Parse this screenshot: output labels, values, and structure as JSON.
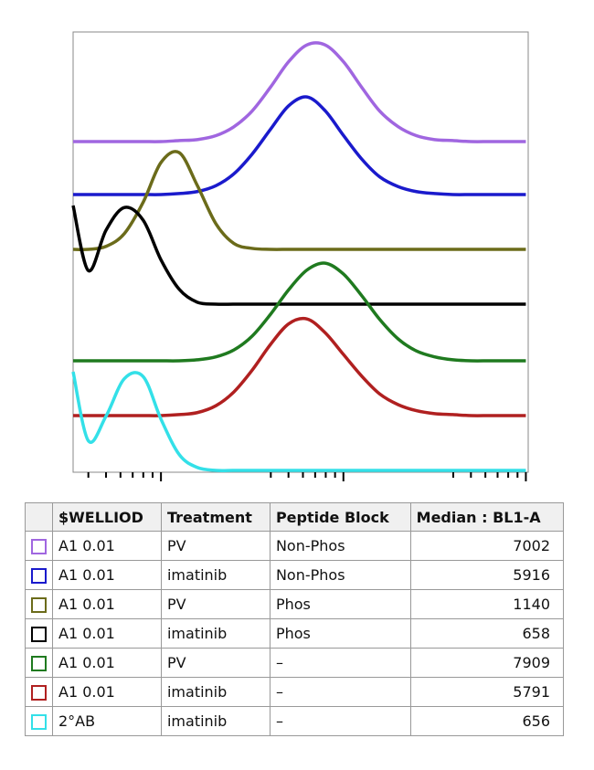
{
  "chart_data": {
    "type": "histogram-overlay",
    "xscale": "log",
    "x": [
      330,
      400,
      500,
      630,
      800,
      1000,
      1260,
      1580,
      2000,
      2510,
      3160,
      3980,
      5010,
      6310,
      7940,
      10000,
      12600,
      15800,
      20000,
      25100,
      31600,
      39800,
      50100,
      63100,
      79400,
      100000
    ],
    "xlim": [
      330,
      103000
    ],
    "xticks": [
      400,
      500,
      600,
      700,
      800,
      900,
      1000,
      4000,
      5000,
      6000,
      7000,
      8000,
      9000,
      10000,
      40000,
      50000,
      60000,
      70000,
      80000,
      90000,
      100000
    ],
    "series": [
      {
        "color": "#a066e0",
        "values": [
          0,
          0,
          0,
          0,
          0,
          0,
          1,
          2,
          6,
          15,
          31,
          55,
          81,
          98,
          98,
          81,
          55,
          31,
          15,
          6,
          2,
          1,
          0,
          0,
          0,
          0
        ]
      },
      {
        "color": "#1a1acc",
        "values": [
          0,
          0,
          0,
          0,
          0,
          0,
          1,
          3,
          9,
          21,
          41,
          66,
          90,
          99,
          85,
          60,
          36,
          18,
          8,
          3,
          1,
          0,
          0,
          0,
          0,
          0
        ]
      },
      {
        "color": "#6b6b1a",
        "values": [
          0,
          0,
          3,
          16,
          48,
          88,
          98,
          65,
          26,
          6,
          1,
          0,
          0,
          0,
          0,
          0,
          0,
          0,
          0,
          0,
          0,
          0,
          0,
          0,
          0,
          0
        ]
      },
      {
        "color": "#000000",
        "values": [
          100,
          34,
          75,
          98,
          85,
          45,
          15,
          2,
          0,
          0,
          0,
          0,
          0,
          0,
          0,
          0,
          0,
          0,
          0,
          0,
          0,
          0,
          0,
          0,
          0,
          0
        ]
      },
      {
        "color": "#1f7a1f",
        "values": [
          0,
          0,
          0,
          0,
          0,
          0,
          0,
          1,
          4,
          11,
          25,
          47,
          72,
          92,
          99,
          88,
          66,
          42,
          22,
          10,
          4,
          1,
          0,
          0,
          0,
          0
        ]
      },
      {
        "color": "#b02020",
        "values": [
          0,
          0,
          0,
          0,
          0,
          0,
          1,
          3,
          10,
          24,
          46,
          72,
          93,
          98,
          84,
          62,
          40,
          22,
          11,
          5,
          2,
          1,
          0,
          0,
          0,
          0
        ]
      },
      {
        "color": "#33e0e8",
        "values": [
          100,
          30,
          55,
          93,
          95,
          52,
          16,
          3,
          0,
          0,
          0,
          0,
          0,
          0,
          0,
          0,
          0,
          0,
          0,
          0,
          0,
          0,
          0,
          0,
          0,
          0
        ]
      }
    ]
  },
  "table": {
    "columns": [
      "$WELLIOD",
      "Treatment",
      "Peptide Block",
      "Median : BL1-A"
    ],
    "rows": [
      [
        "A1 0.01",
        "PV",
        "Non-Phos",
        7002
      ],
      [
        "A1 0.01",
        "imatinib",
        "Non-Phos",
        5916
      ],
      [
        "A1 0.01",
        "PV",
        "Phos",
        1140
      ],
      [
        "A1 0.01",
        "imatinib",
        "Phos",
        658
      ],
      [
        "A1 0.01",
        "PV",
        "–",
        7909
      ],
      [
        "A1 0.01",
        "imatinib",
        "–",
        5791
      ],
      [
        "2°AB",
        "imatinib",
        "–",
        656
      ]
    ]
  }
}
